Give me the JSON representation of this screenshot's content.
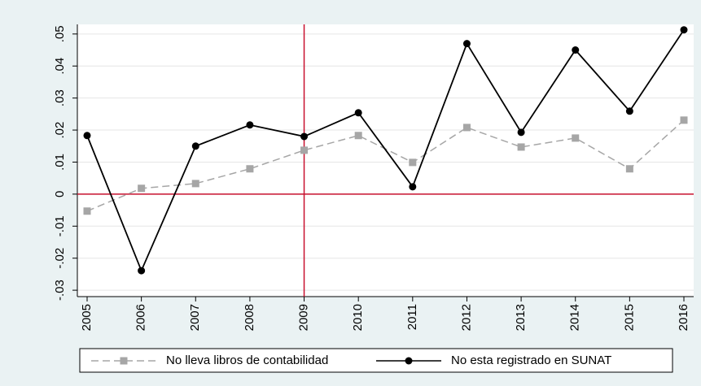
{
  "chart_data": {
    "type": "line",
    "x": [
      2005,
      2006,
      2007,
      2008,
      2009,
      2010,
      2011,
      2012,
      2013,
      2014,
      2015,
      2016
    ],
    "xlim": [
      2004.82,
      2016.18
    ],
    "ylim": [
      -0.032,
      0.053
    ],
    "yticks": [
      {
        "value": -0.03,
        "label": "-.03"
      },
      {
        "value": -0.02,
        "label": "-.02"
      },
      {
        "value": -0.01,
        "label": "-.01"
      },
      {
        "value": 0,
        "label": "0"
      },
      {
        "value": 0.01,
        "label": ".01"
      },
      {
        "value": 0.02,
        "label": ".02"
      },
      {
        "value": 0.03,
        "label": ".03"
      },
      {
        "value": 0.04,
        "label": ".04"
      },
      {
        "value": 0.05,
        "label": ".05"
      }
    ],
    "grid": true,
    "vline": 2009,
    "hline": 0,
    "refline_color": "#c8102e",
    "series": [
      {
        "name": "No lleva libros de contabilidad",
        "color": "#a6a6a6",
        "dashed": true,
        "marker": "square",
        "values": [
          -0.0053,
          0.0018,
          0.0033,
          0.0079,
          0.0137,
          0.0183,
          0.0099,
          0.0208,
          0.0147,
          0.0175,
          0.0079,
          0.0231
        ]
      },
      {
        "name": "No esta registrado en SUNAT",
        "color": "#000000",
        "dashed": false,
        "marker": "circle",
        "values": [
          0.0183,
          -0.0239,
          0.015,
          0.0216,
          0.018,
          0.0254,
          0.0023,
          0.047,
          0.0193,
          0.045,
          0.0259,
          0.0513
        ]
      }
    ]
  }
}
